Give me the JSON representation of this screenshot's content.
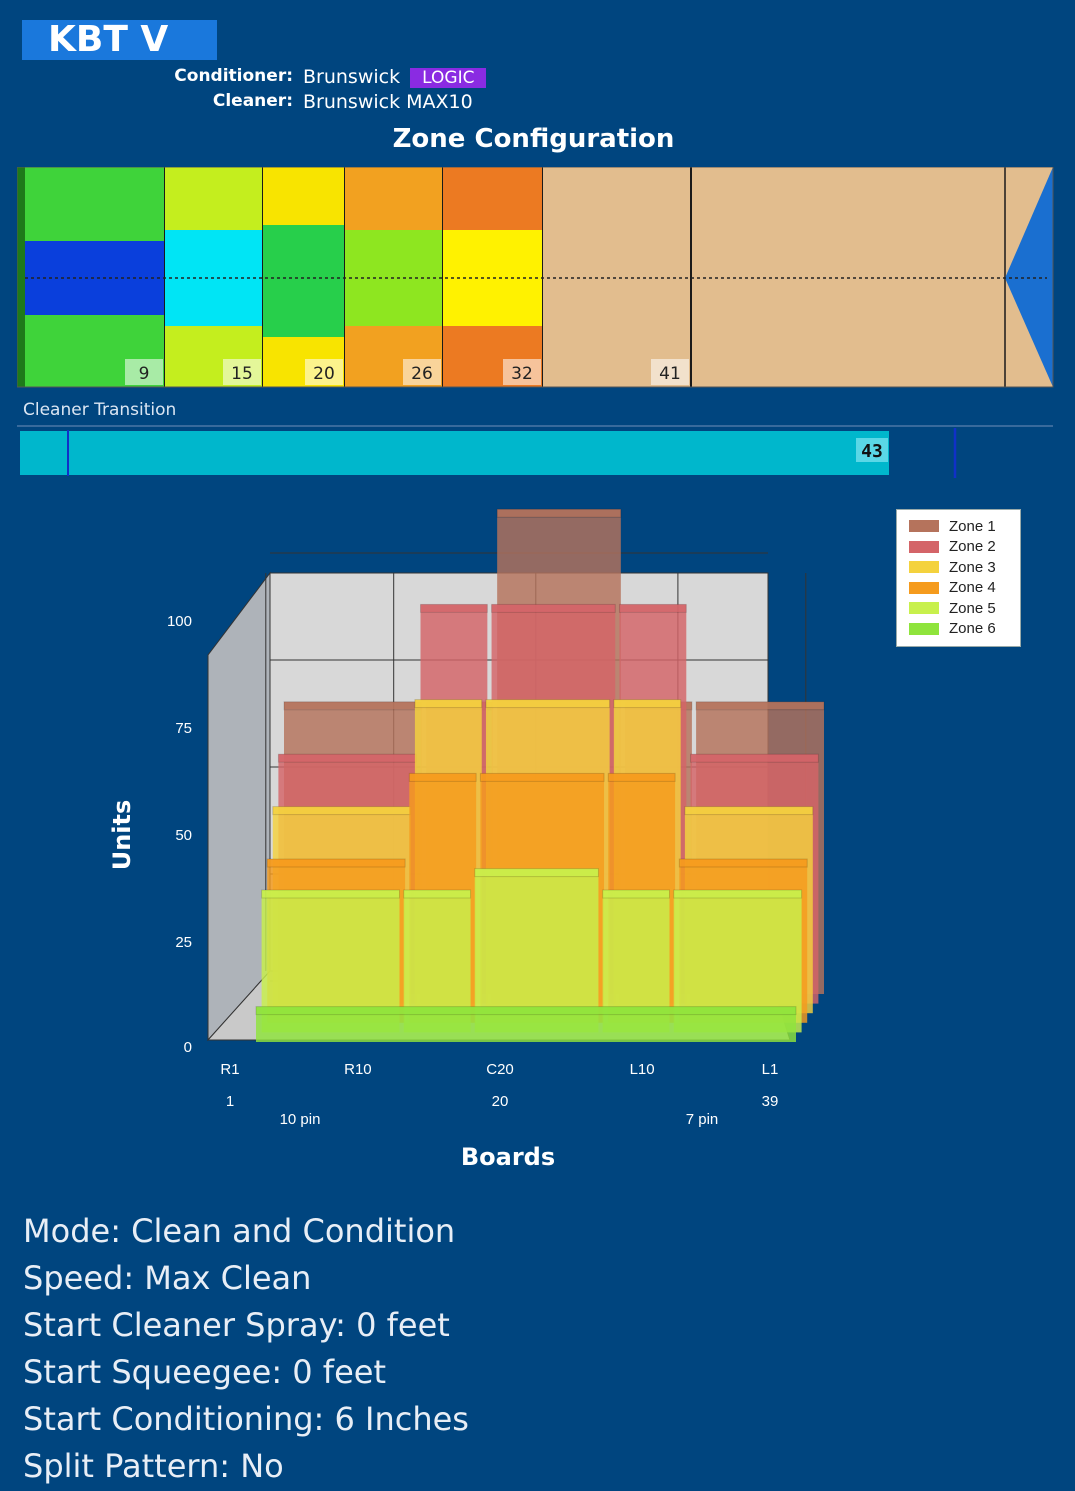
{
  "header": {
    "pattern_name": "KBT V",
    "conditioner_label": "Conditioner:",
    "conditioner_value": "Brunswick",
    "conditioner_tag": "LOGIC",
    "cleaner_label": "Cleaner:",
    "cleaner_value": "Brunswick MAX10"
  },
  "zone_configuration": {
    "title": "Zone Configuration",
    "zones": [
      {
        "end_feet": 9,
        "label": "9",
        "colors": [
          "#3fd33a",
          "#0a3fdc",
          "#3fd33a"
        ]
      },
      {
        "end_feet": 15,
        "label": "15",
        "colors": [
          "#c4ee1e",
          "#00e5f5",
          "#c4ee1e"
        ]
      },
      {
        "end_feet": 20,
        "label": "20",
        "colors": [
          "#f8e400",
          "#27cf4b",
          "#f8e400"
        ]
      },
      {
        "end_feet": 26,
        "label": "26",
        "colors": [
          "#f2a120",
          "#8ee620",
          "#f2a120"
        ]
      },
      {
        "end_feet": 32,
        "label": "32",
        "colors": [
          "#ec7a22",
          "#fff200",
          "#ec7a22"
        ]
      },
      {
        "end_feet": 41,
        "label": "41",
        "colors": [
          "#e2bd8e"
        ]
      }
    ],
    "lane_color": "#e2bd8e",
    "pin_deck_color": "#1a6fd0"
  },
  "cleaner_transition": {
    "label": "Cleaner Transition",
    "value": 43,
    "value_label": "43",
    "color": "#00b7cc"
  },
  "legend": [
    {
      "label": "Zone 1",
      "color": "#b5735c"
    },
    {
      "label": "Zone 2",
      "color": "#d46468"
    },
    {
      "label": "Zone 3",
      "color": "#f4d23e"
    },
    {
      "label": "Zone 4",
      "color": "#f59b1d"
    },
    {
      "label": "Zone 5",
      "color": "#c8f04c"
    },
    {
      "label": "Zone 6",
      "color": "#8fe43c"
    }
  ],
  "chart_data": {
    "type": "area",
    "ylabel": "Units",
    "xlabel": "Boards",
    "y_ticks": [
      "100",
      "75",
      "50",
      "25",
      "0"
    ],
    "x_ticks": [
      "R1",
      "R10",
      "C20",
      "L10",
      "L1"
    ],
    "board_numbers": [
      "1",
      "20",
      "39"
    ],
    "pin_labels": [
      "10 pin",
      "7 pin"
    ],
    "ylim": [
      0,
      110
    ],
    "series": [
      {
        "name": "Zone 1",
        "segments": [
          {
            "boards": [
              1,
              10
            ],
            "units": 65
          },
          {
            "boards": [
              11,
              15
            ],
            "units": 65
          },
          {
            "boards": [
              16,
              24
            ],
            "units": 110
          },
          {
            "boards": [
              25,
              29
            ],
            "units": 65
          },
          {
            "boards": [
              30,
              39
            ],
            "units": 65
          }
        ]
      },
      {
        "name": "Zone 2",
        "segments": [
          {
            "boards": [
              1,
              10
            ],
            "units": 55
          },
          {
            "boards": [
              11,
              15
            ],
            "units": 90
          },
          {
            "boards": [
              16,
              24
            ],
            "units": 90
          },
          {
            "boards": [
              25,
              29
            ],
            "units": 90
          },
          {
            "boards": [
              30,
              39
            ],
            "units": 55
          }
        ]
      },
      {
        "name": "Zone 3",
        "segments": [
          {
            "boards": [
              1,
              10
            ],
            "units": 45
          },
          {
            "boards": [
              11,
              15
            ],
            "units": 70
          },
          {
            "boards": [
              16,
              24
            ],
            "units": 70
          },
          {
            "boards": [
              25,
              29
            ],
            "units": 70
          },
          {
            "boards": [
              30,
              39
            ],
            "units": 45
          }
        ]
      },
      {
        "name": "Zone 4",
        "segments": [
          {
            "boards": [
              1,
              10
            ],
            "units": 35
          },
          {
            "boards": [
              11,
              15
            ],
            "units": 55
          },
          {
            "boards": [
              16,
              24
            ],
            "units": 55
          },
          {
            "boards": [
              25,
              29
            ],
            "units": 55
          },
          {
            "boards": [
              30,
              39
            ],
            "units": 35
          }
        ]
      },
      {
        "name": "Zone 5",
        "segments": [
          {
            "boards": [
              1,
              10
            ],
            "units": 30
          },
          {
            "boards": [
              11,
              15
            ],
            "units": 30
          },
          {
            "boards": [
              16,
              24
            ],
            "units": 35
          },
          {
            "boards": [
              25,
              29
            ],
            "units": 30
          },
          {
            "boards": [
              30,
              39
            ],
            "units": 30
          }
        ]
      },
      {
        "name": "Zone 6",
        "segments": [
          {
            "boards": [
              1,
              39
            ],
            "units": 5
          }
        ]
      }
    ],
    "grid": true,
    "legend_position": "top-right"
  },
  "settings": {
    "mode": "Mode: Clean and Condition",
    "speed": "Speed: Max Clean",
    "start_cleaner_spray": "Start Cleaner Spray: 0 feet",
    "start_squeegee": "Start Squeegee: 0 feet",
    "start_conditioning": "Start Conditioning: 6 Inches",
    "split_pattern": "Split Pattern: No"
  }
}
